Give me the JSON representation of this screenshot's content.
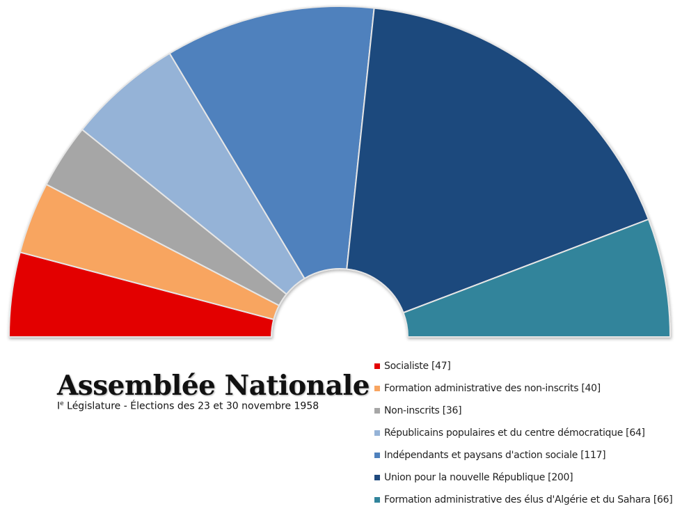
{
  "chart_data": {
    "type": "pie",
    "variant": "half-donut",
    "title": "Assemblée Nationale",
    "subtitle_prefix": "I",
    "subtitle_sup": "e",
    "subtitle_rest": " Législature - Élections des 23 et 30 novembre 1958",
    "legend_position": "bottom-right",
    "series": [
      {
        "name": "Socialiste",
        "value": 47,
        "label": "Socialiste [47]",
        "color": "#e30000"
      },
      {
        "name": "Formation administrative des non-inscrits",
        "value": 40,
        "label": "Formation administrative des non-inscrits [40]",
        "color": "#f8a561"
      },
      {
        "name": "Non-inscrits",
        "value": 36,
        "label": "Non-inscrits [36]",
        "color": "#a6a6a6"
      },
      {
        "name": "Républicains populaires et du centre démocratique",
        "value": 64,
        "label": "Républicains populaires et du centre démocratique [64]",
        "color": "#95b3d7"
      },
      {
        "name": "Indépendants et paysans d'action sociale",
        "value": 117,
        "label": "Indépendants et paysans d'action sociale [117]",
        "color": "#4f81bd"
      },
      {
        "name": "Union pour la nouvelle République",
        "value": 200,
        "label": "Union pour la nouvelle République [200]",
        "color": "#1f497d"
      },
      {
        "name": "Formation administrative des élus d'Algérie et du Sahara",
        "value": 66,
        "label": "Formation administrative des élus d'Algérie et du Sahara [66]",
        "color": "#31849b"
      }
    ]
  }
}
